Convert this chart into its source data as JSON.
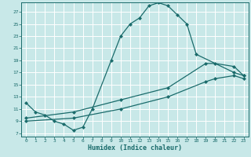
{
  "xlabel": "Humidex (Indice chaleur)",
  "bg_color": "#c8e8e8",
  "grid_color": "#ffffff",
  "line_color": "#1a6b6b",
  "xlim": [
    -0.5,
    23.5
  ],
  "ylim": [
    6.5,
    28.5
  ],
  "xticks": [
    0,
    1,
    2,
    3,
    4,
    5,
    6,
    7,
    8,
    9,
    10,
    11,
    12,
    13,
    14,
    15,
    16,
    17,
    18,
    19,
    20,
    21,
    22,
    23
  ],
  "yticks": [
    7,
    9,
    11,
    13,
    15,
    17,
    19,
    21,
    23,
    25,
    27
  ],
  "line1_x": [
    0,
    1,
    2,
    3,
    4,
    5,
    6,
    7,
    9,
    10,
    11,
    12,
    13,
    14,
    15,
    16,
    17,
    18,
    22,
    23
  ],
  "line1_y": [
    12,
    10.5,
    10,
    9,
    8.5,
    7.5,
    8,
    11,
    19,
    23,
    25,
    26,
    28,
    28.5,
    28,
    26.5,
    25,
    20,
    17,
    16.5
  ],
  "line2_x": [
    0,
    5,
    10,
    15,
    19,
    20,
    22,
    23
  ],
  "line2_y": [
    9.5,
    10.5,
    12.5,
    14.5,
    18.5,
    18.5,
    18,
    16.5
  ],
  "line3_x": [
    0,
    5,
    10,
    15,
    19,
    20,
    22,
    23
  ],
  "line3_y": [
    9,
    9.5,
    11,
    13,
    15.5,
    16,
    16.5,
    16
  ]
}
